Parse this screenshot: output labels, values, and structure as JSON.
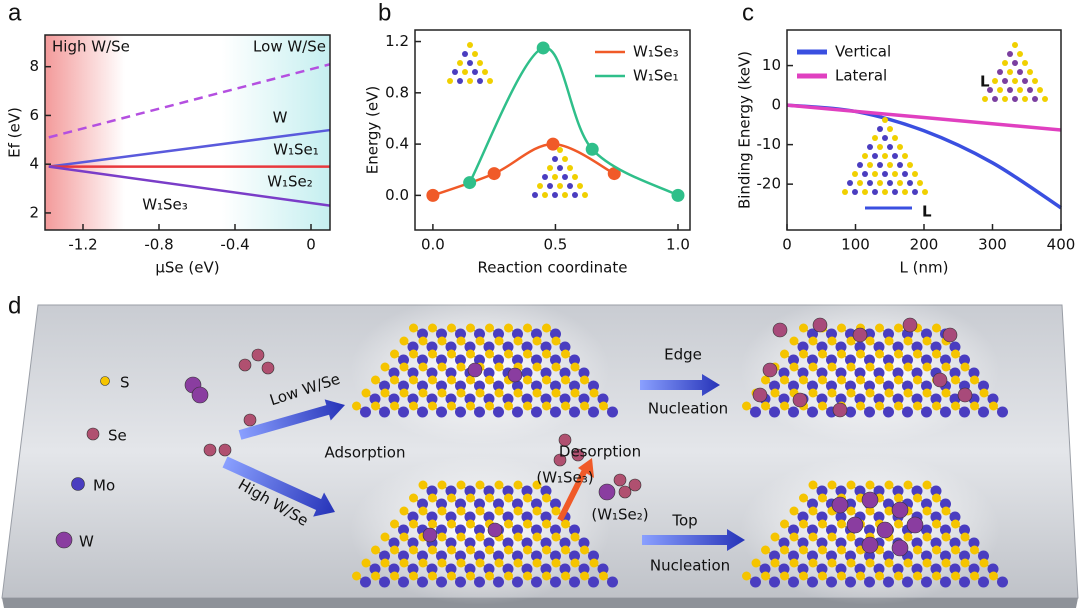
{
  "chart_data": [
    {
      "type": "line",
      "x_label": "μSe (eV)",
      "y_label": "Ef (eV)",
      "xlim": [
        -1.4,
        0.1
      ],
      "xticks": [
        -1.2,
        -0.8,
        -0.4,
        0
      ],
      "ylim": [
        1.3,
        9.3
      ],
      "yticks": [
        2,
        4,
        6,
        8
      ],
      "annotations": [
        "High W/Se",
        "Low W/Se"
      ],
      "x": [
        -1.38,
        0.1
      ],
      "series": [
        {
          "name": "W",
          "color": "#b44fe0",
          "dash": true,
          "values": [
            5.1,
            8.1
          ]
        },
        {
          "name": "W₁Se₁",
          "color": "#5a5adc",
          "values": [
            3.9,
            5.4
          ]
        },
        {
          "name": "W₁Se₂",
          "color": "#e8383d",
          "values": [
            3.9,
            3.9
          ]
        },
        {
          "name": "W₁Se₃",
          "color": "#7a3dc8",
          "values": [
            3.9,
            2.3
          ]
        }
      ]
    },
    {
      "type": "line",
      "x_label": "Reaction coordinate",
      "y_label": "Energy (eV)",
      "xlim": [
        -0.073,
        1.049
      ],
      "xticks": [
        {
          "value": 0,
          "label": "0.0"
        },
        {
          "value": 0.5,
          "label": "0.5"
        },
        {
          "value": 1,
          "label": "1.0"
        }
      ],
      "ylim": [
        -0.27,
        1.29
      ],
      "yticks": [
        {
          "value": 0,
          "label": "0.0"
        },
        0.4,
        0.8,
        {
          "value": 1.2,
          "label": "1.2"
        }
      ],
      "smooth": true,
      "markers": true,
      "legend": "upper right",
      "series": [
        {
          "name": "W₁Se₃",
          "color": "#f05a28",
          "x": [
            0,
            0.25,
            0.49,
            0.74
          ],
          "values": [
            0,
            0.17,
            0.4,
            0.17
          ]
        },
        {
          "name": "W₁Se₁",
          "color": "#2fbf8a",
          "x": [
            0.15,
            0.45,
            0.65,
            1.0
          ],
          "values": [
            0.1,
            1.15,
            0.36,
            0
          ]
        }
      ]
    },
    {
      "type": "line",
      "x_label": "L (nm)",
      "y_label": "Binding Energy (keV)",
      "xlim": [
        0,
        400
      ],
      "xticks": [
        0,
        100,
        200,
        300,
        400
      ],
      "ylim": [
        -31.6,
        19
      ],
      "yticks": [
        -20,
        -10,
        0,
        10
      ],
      "smooth": true,
      "legend": "upper left",
      "annotations": [
        "L",
        "L"
      ],
      "series": [
        {
          "name": "Vertical",
          "color": "#3a4fe0",
          "x": [
            0,
            100,
            200,
            300,
            400
          ],
          "values": [
            0,
            -1.6,
            -6.5,
            -14.6,
            -26
          ]
        },
        {
          "name": "Lateral",
          "color": "#e040c0",
          "x": [
            0,
            400
          ],
          "values": [
            0,
            -6.3
          ]
        }
      ]
    }
  ],
  "panel_labels": [
    "a",
    "b",
    "c",
    "d"
  ],
  "diagram": {
    "legend": [
      "S",
      "Se",
      "Mo",
      "W"
    ],
    "labels": [
      "Low W/Se",
      "High W/Se",
      "Adsorption",
      "Desorption",
      "(W₁Se₃)",
      "(W₁Se₂)",
      "Edge",
      "Nucleation",
      "Top",
      "Nucleation"
    ]
  }
}
